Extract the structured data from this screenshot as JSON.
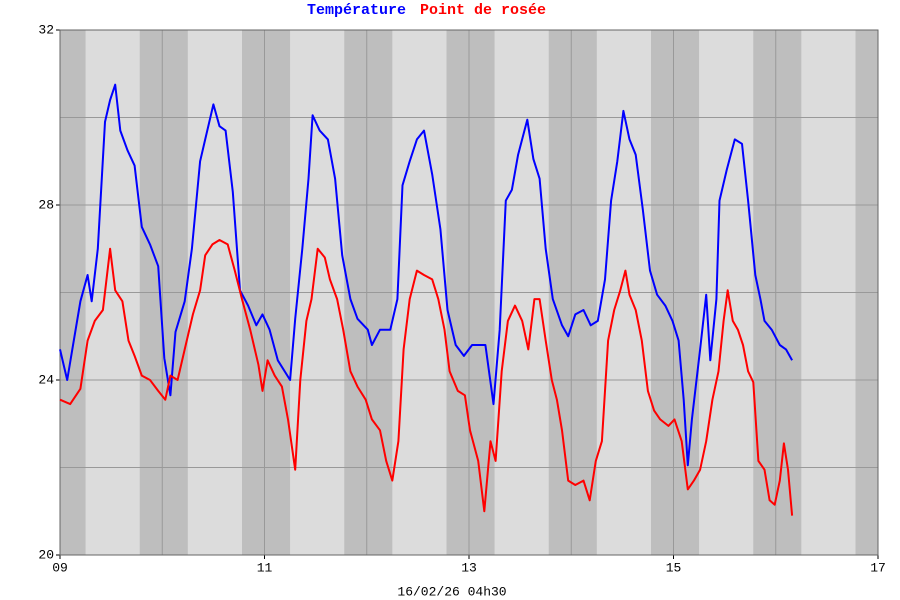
{
  "chart_data": {
    "type": "line",
    "xlabel": "16/02/26 04h30",
    "xlim": [
      9,
      17
    ],
    "ylim": [
      20,
      32
    ],
    "xticks": [
      {
        "value": 9,
        "label": "09"
      },
      11,
      13,
      15,
      17
    ],
    "yticks": [
      20,
      24,
      28,
      32
    ],
    "xgrid": [
      10,
      11,
      12,
      13,
      14,
      15,
      16
    ],
    "ygrid": [
      22,
      24,
      26,
      28,
      30
    ],
    "background": "#dcdcdc",
    "band_color": "#bebebe",
    "shaded_bands": [
      [
        9,
        9.25
      ],
      [
        9.78,
        10.25
      ],
      [
        10.78,
        11.25
      ],
      [
        11.78,
        12.25
      ],
      [
        12.78,
        13.25
      ],
      [
        13.78,
        14.25
      ],
      [
        14.78,
        15.25
      ],
      [
        15.78,
        16.25
      ],
      [
        16.78,
        17
      ]
    ],
    "series": [
      {
        "name": "Température",
        "color": "#0000ff",
        "x": [
          9.0,
          9.07,
          9.12,
          9.2,
          9.27,
          9.31,
          9.37,
          9.44,
          9.49,
          9.54,
          9.59,
          9.66,
          9.73,
          9.8,
          9.88,
          9.96,
          10.02,
          10.08,
          10.13,
          10.22,
          10.29,
          10.37,
          10.42,
          10.5,
          10.56,
          10.62,
          10.69,
          10.76,
          10.84,
          10.92,
          10.98,
          11.05,
          11.13,
          11.25,
          11.3,
          11.37,
          11.43,
          11.47,
          11.54,
          11.62,
          11.69,
          11.76,
          11.84,
          11.91,
          12.01,
          12.05,
          12.13,
          12.23,
          12.3,
          12.35,
          12.42,
          12.49,
          12.56,
          12.64,
          12.72,
          12.79,
          12.87,
          12.95,
          13.03,
          13.16,
          13.24,
          13.3,
          13.36,
          13.42,
          13.48,
          13.57,
          13.63,
          13.69,
          13.75,
          13.82,
          13.91,
          13.97,
          14.04,
          14.12,
          14.19,
          14.26,
          14.33,
          14.39,
          14.45,
          14.51,
          14.57,
          14.63,
          14.7,
          14.77,
          14.84,
          14.92,
          14.99,
          15.05,
          15.1,
          15.14,
          15.18,
          15.26,
          15.32,
          15.36,
          15.42,
          15.45,
          15.52,
          15.6,
          15.67,
          15.73,
          15.8,
          15.85,
          15.89,
          15.96,
          16.04,
          16.1,
          16.16
        ],
        "values": [
          24.7,
          24.0,
          24.7,
          25.8,
          26.4,
          25.8,
          27.0,
          29.9,
          30.4,
          30.75,
          29.7,
          29.25,
          28.9,
          27.5,
          27.1,
          26.6,
          24.5,
          23.65,
          25.1,
          25.8,
          27.0,
          29.0,
          29.5,
          30.3,
          29.8,
          29.7,
          28.3,
          26.05,
          25.7,
          25.25,
          25.5,
          25.15,
          24.45,
          24.0,
          25.4,
          27.0,
          28.6,
          30.05,
          29.7,
          29.5,
          28.6,
          26.85,
          25.85,
          25.4,
          25.15,
          24.8,
          25.15,
          25.15,
          25.85,
          28.45,
          29.0,
          29.5,
          29.7,
          28.7,
          27.45,
          25.6,
          24.8,
          24.55,
          24.8,
          24.8,
          23.45,
          25.15,
          28.1,
          28.35,
          29.15,
          29.95,
          29.05,
          28.6,
          27.0,
          25.85,
          25.25,
          25.0,
          25.5,
          25.6,
          25.25,
          25.35,
          26.3,
          28.1,
          29.0,
          30.15,
          29.5,
          29.15,
          27.9,
          26.5,
          25.95,
          25.7,
          25.35,
          24.9,
          23.55,
          22.05,
          23.1,
          24.7,
          25.95,
          24.45,
          25.85,
          28.1,
          28.8,
          29.5,
          29.4,
          28.1,
          26.4,
          25.85,
          25.35,
          25.15,
          24.8,
          24.7,
          24.45
        ]
      },
      {
        "name": "Point de rosée",
        "color": "#ff0000",
        "x": [
          9.0,
          9.1,
          9.2,
          9.27,
          9.34,
          9.42,
          9.49,
          9.54,
          9.61,
          9.67,
          9.73,
          9.8,
          9.88,
          9.96,
          10.03,
          10.08,
          10.15,
          10.22,
          10.3,
          10.37,
          10.42,
          10.49,
          10.56,
          10.64,
          10.71,
          10.78,
          10.86,
          10.94,
          10.98,
          11.03,
          11.1,
          11.17,
          11.23,
          11.3,
          11.35,
          11.41,
          11.46,
          11.52,
          11.59,
          11.64,
          11.71,
          11.77,
          11.84,
          11.91,
          11.99,
          12.05,
          12.13,
          12.19,
          12.25,
          12.31,
          12.36,
          12.42,
          12.49,
          12.56,
          12.64,
          12.7,
          12.76,
          12.81,
          12.89,
          12.96,
          13.01,
          13.09,
          13.15,
          13.21,
          13.26,
          13.32,
          13.38,
          13.45,
          13.52,
          13.58,
          13.64,
          13.69,
          13.75,
          13.81,
          13.86,
          13.91,
          13.97,
          14.04,
          14.12,
          14.18,
          14.24,
          14.3,
          14.36,
          14.42,
          14.48,
          14.53,
          14.57,
          14.63,
          14.69,
          14.75,
          14.81,
          14.87,
          14.95,
          15.01,
          15.08,
          15.14,
          15.2,
          15.26,
          15.32,
          15.38,
          15.44,
          15.49,
          15.53,
          15.58,
          15.63,
          15.68,
          15.73,
          15.78,
          15.83,
          15.89,
          15.94,
          15.99,
          16.04,
          16.08,
          16.12,
          16.16
        ],
        "values": [
          23.55,
          23.45,
          23.8,
          24.9,
          25.35,
          25.6,
          27.0,
          26.05,
          25.8,
          24.9,
          24.55,
          24.1,
          24.0,
          23.75,
          23.55,
          24.1,
          24.0,
          24.7,
          25.5,
          26.05,
          26.85,
          27.1,
          27.2,
          27.1,
          26.5,
          25.85,
          25.15,
          24.35,
          23.75,
          24.45,
          24.1,
          23.85,
          23.1,
          21.95,
          24.0,
          25.35,
          25.85,
          27.0,
          26.8,
          26.3,
          25.85,
          25.15,
          24.2,
          23.85,
          23.55,
          23.1,
          22.85,
          22.15,
          21.7,
          22.6,
          24.7,
          25.85,
          26.5,
          26.4,
          26.3,
          25.85,
          25.15,
          24.2,
          23.75,
          23.65,
          22.85,
          22.15,
          21.0,
          22.6,
          22.15,
          24.2,
          25.35,
          25.7,
          25.35,
          24.7,
          25.85,
          25.85,
          24.9,
          24.0,
          23.55,
          22.85,
          21.7,
          21.6,
          21.7,
          21.25,
          22.15,
          22.6,
          24.9,
          25.6,
          26.05,
          26.5,
          25.95,
          25.6,
          24.9,
          23.75,
          23.3,
          23.1,
          22.95,
          23.1,
          22.6,
          21.5,
          21.7,
          21.95,
          22.6,
          23.55,
          24.2,
          25.35,
          26.05,
          25.35,
          25.15,
          24.8,
          24.2,
          23.95,
          22.15,
          21.95,
          21.25,
          21.15,
          21.7,
          22.55,
          21.95,
          20.9
        ]
      }
    ]
  }
}
